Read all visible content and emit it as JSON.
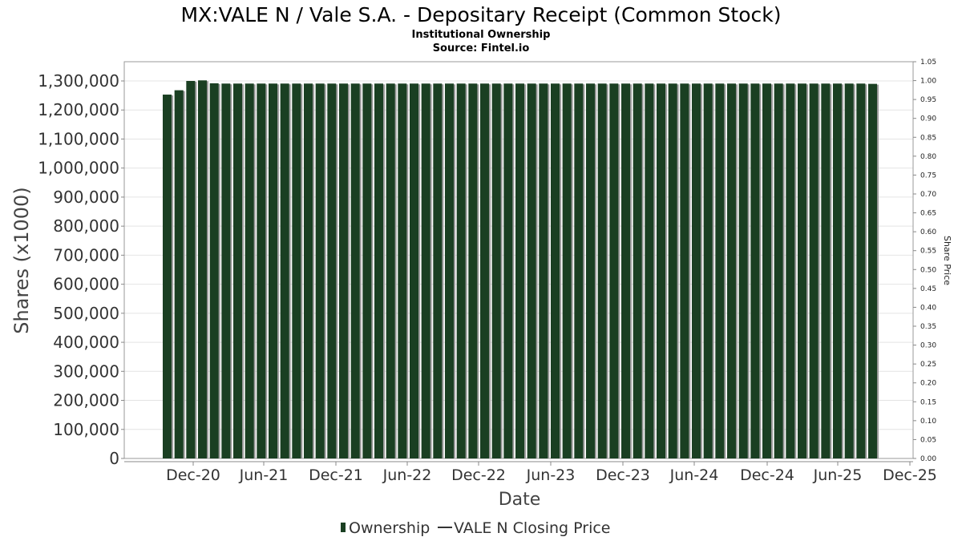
{
  "chart_data": {
    "type": "bar",
    "title": "MX:VALE N / Vale S.A. - Depositary Receipt (Common Stock)",
    "subtitle": "Institutional Ownership",
    "source": "Source: Fintel.io",
    "xlabel": "Date",
    "ylabel": "Shares (x1000)",
    "y2label": "Share Price",
    "ylim": [
      0,
      1350000
    ],
    "yticks": [
      0,
      100000,
      200000,
      300000,
      400000,
      500000,
      600000,
      700000,
      800000,
      900000,
      1000000,
      1100000,
      1200000,
      1300000
    ],
    "ytick_labels": [
      "0",
      "100,000",
      "200,000",
      "300,000",
      "400,000",
      "500,000",
      "600,000",
      "700,000",
      "800,000",
      "900,000",
      "1,000,000",
      "1,100,000",
      "1,200,000",
      "1,300,000"
    ],
    "y2lim": [
      0,
      1.05
    ],
    "y2ticks": [
      0,
      0.05,
      0.1,
      0.15,
      0.2,
      0.25,
      0.3,
      0.35,
      0.4,
      0.45,
      0.5,
      0.55,
      0.6,
      0.65,
      0.7,
      0.75,
      0.8,
      0.85,
      0.9,
      0.95,
      1.0,
      1.05
    ],
    "y2tick_labels": [
      "0.00",
      "0.05",
      "0.10",
      "0.15",
      "0.20",
      "0.25",
      "0.30",
      "0.35",
      "0.40",
      "0.45",
      "0.50",
      "0.55",
      "0.60",
      "0.65",
      "0.70",
      "0.75",
      "0.80",
      "0.85",
      "0.90",
      "0.95",
      "1.00",
      "1.05"
    ],
    "x_ticks": [
      "Dec-20",
      "Jun-21",
      "Dec-21",
      "Jun-22",
      "Dec-22",
      "Jun-23",
      "Dec-23",
      "Jun-24",
      "Dec-24",
      "Jun-25",
      "Dec-25"
    ],
    "grid": true,
    "legend_position": "bottom",
    "series": [
      {
        "name": "Ownership",
        "color": "#1a3f22",
        "values": [
          1253000,
          1268000,
          1300000,
          1302000,
          1292000,
          1291000,
          1291000,
          1291000,
          1291000,
          1291000,
          1291000,
          1291000,
          1291000,
          1291000,
          1291000,
          1291000,
          1291000,
          1291000,
          1291000,
          1291000,
          1291000,
          1291000,
          1291000,
          1291000,
          1291000,
          1291000,
          1291000,
          1291000,
          1291000,
          1291000,
          1291000,
          1291000,
          1291000,
          1291000,
          1291000,
          1291000,
          1291000,
          1291000,
          1291000,
          1291000,
          1291000,
          1291000,
          1291000,
          1291000,
          1291000,
          1291000,
          1291000,
          1291000,
          1291000,
          1291000,
          1291000,
          1291000,
          1291000,
          1291000,
          1291000,
          1291000,
          1291000,
          1291000,
          1291000,
          1291000,
          1290000
        ]
      },
      {
        "name": "VALE N Closing Price",
        "color": "#000000",
        "values": []
      }
    ]
  }
}
